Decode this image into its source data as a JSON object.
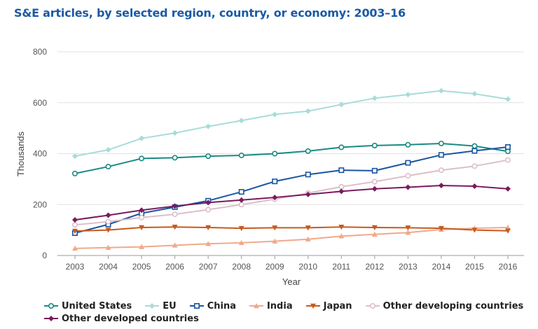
{
  "title": "S&E articles, by selected region, country, or economy: 2003–16",
  "chart_data": {
    "type": "line",
    "title": "S&E articles, by selected region, country, or economy: 2003–16",
    "xlabel": "Year",
    "ylabel": "Thousands",
    "ylim": [
      0,
      800
    ],
    "yticks": [
      "0",
      "200",
      "400",
      "600",
      "800"
    ],
    "grid": true,
    "legend_position": "bottom",
    "x": [
      "2003",
      "2004",
      "2005",
      "2006",
      "2007",
      "2008",
      "2009",
      "2010",
      "2011",
      "2012",
      "2013",
      "2014",
      "2015",
      "2016"
    ],
    "series": [
      {
        "name": "United States",
        "color": "#1a8a82",
        "marker": "circle-open",
        "values": [
          322,
          349,
          381,
          384,
          390,
          393,
          400,
          410,
          425,
          432,
          435,
          440,
          430,
          409
        ]
      },
      {
        "name": "EU",
        "color": "#a8dcd8",
        "marker": "diamond",
        "values": [
          390,
          415,
          460,
          481,
          507,
          530,
          554,
          567,
          593,
          618,
          632,
          647,
          635,
          614
        ]
      },
      {
        "name": "China",
        "color": "#1a55a0",
        "marker": "square-open",
        "values": [
          88,
          122,
          166,
          190,
          215,
          250,
          291,
          318,
          335,
          333,
          364,
          395,
          411,
          426
        ]
      },
      {
        "name": "India",
        "color": "#f0a98a",
        "marker": "triangle-up",
        "values": [
          28,
          31,
          34,
          40,
          46,
          50,
          56,
          64,
          76,
          83,
          90,
          102,
          107,
          110
        ]
      },
      {
        "name": "Japan",
        "color": "#c65a1e",
        "marker": "triangle-down",
        "values": [
          96,
          100,
          110,
          112,
          110,
          107,
          109,
          109,
          112,
          110,
          109,
          107,
          100,
          97
        ]
      },
      {
        "name": "Other developing countries",
        "color": "#dcbfca",
        "marker": "circle-open",
        "values": [
          120,
          133,
          149,
          162,
          180,
          200,
          221,
          245,
          270,
          290,
          313,
          335,
          351,
          375
        ]
      },
      {
        "name": "Other developed countries",
        "color": "#7a1a5e",
        "marker": "diamond",
        "values": [
          140,
          158,
          178,
          194,
          208,
          218,
          228,
          240,
          252,
          262,
          268,
          275,
          272,
          262
        ]
      }
    ]
  }
}
